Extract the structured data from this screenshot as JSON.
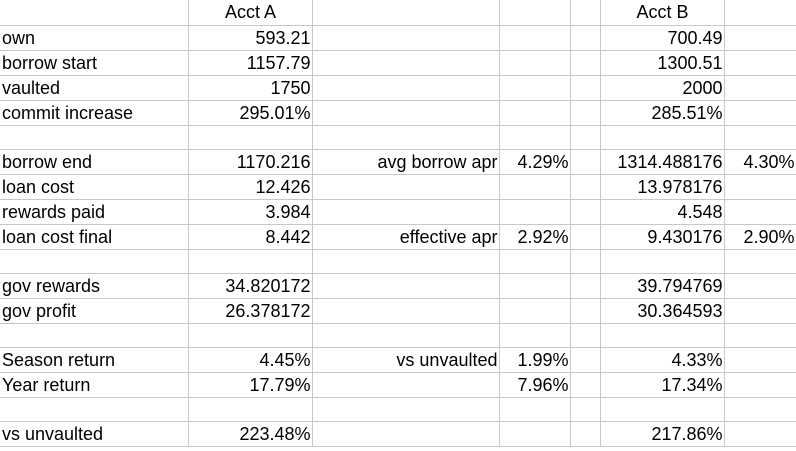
{
  "header": [
    "",
    "Acct A",
    "",
    "",
    "",
    "Acct B",
    ""
  ],
  "rows": [
    [
      "own",
      "593.21",
      "",
      "",
      "",
      "700.49",
      ""
    ],
    [
      "borrow start",
      "1157.79",
      "",
      "",
      "",
      "1300.51",
      ""
    ],
    [
      "vaulted",
      "1750",
      "",
      "",
      "",
      "2000",
      ""
    ],
    [
      "commit increase",
      "295.01%",
      "",
      "",
      "",
      "285.51%",
      ""
    ],
    [
      "",
      "",
      "",
      "",
      "",
      "",
      ""
    ],
    [
      "borrow end",
      "1170.216",
      "avg borrow apr",
      "4.29%",
      "",
      "1314.488176",
      "4.30%"
    ],
    [
      "loan cost",
      "12.426",
      "",
      "",
      "",
      "13.978176",
      ""
    ],
    [
      "rewards paid",
      "3.984",
      "",
      "",
      "",
      "4.548",
      ""
    ],
    [
      "loan cost final",
      "8.442",
      "effective apr",
      "2.92%",
      "",
      "9.430176",
      "2.90%"
    ],
    [
      "",
      "",
      "",
      "",
      "",
      "",
      ""
    ],
    [
      "gov rewards",
      "34.820172",
      "",
      "",
      "",
      "39.794769",
      ""
    ],
    [
      "gov profit",
      "26.378172",
      "",
      "",
      "",
      "30.364593",
      ""
    ],
    [
      "",
      "",
      "",
      "",
      "",
      "",
      ""
    ],
    [
      "Season return",
      "4.45%",
      "vs unvaulted",
      "1.99%",
      "",
      "4.33%",
      ""
    ],
    [
      "Year return",
      "17.79%",
      "",
      "7.96%",
      "",
      "17.34%",
      ""
    ],
    [
      "",
      "",
      "",
      "",
      "",
      "",
      ""
    ],
    [
      "vs unvaulted",
      "223.48%",
      "",
      "",
      "",
      "217.86%",
      ""
    ]
  ]
}
